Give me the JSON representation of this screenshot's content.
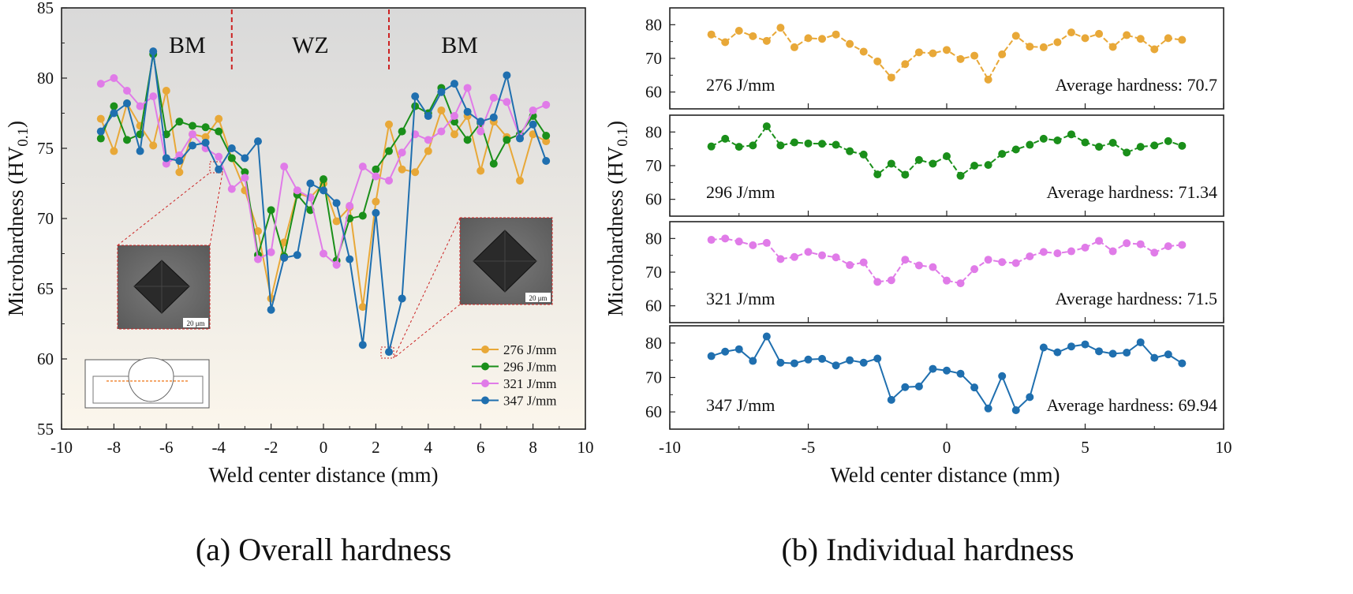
{
  "chart_data": [
    {
      "type": "line",
      "caption": "(a) Overall hardness",
      "xlabel": "Weld center distance (mm)",
      "ylabel_main": "Microhardness (HV",
      "ylabel_sub": "0.1",
      "ylabel_close": ")",
      "xlim": [
        -10,
        10
      ],
      "ylim": [
        55,
        85
      ],
      "xticks": [
        -10,
        -8,
        -6,
        -4,
        -2,
        0,
        2,
        4,
        6,
        8,
        10
      ],
      "yticks": [
        55,
        60,
        65,
        70,
        75,
        80,
        85
      ],
      "regions": [
        {
          "label": "BM",
          "x": -5.2
        },
        {
          "label": "WZ",
          "x": -0.5
        },
        {
          "label": "BM",
          "x": 5.2
        }
      ],
      "region_boundaries": [
        -3.5,
        2.5
      ],
      "micrograph_scale": "20 μm",
      "legend_position": "bottom-right",
      "x": [
        -8.5,
        -8,
        -7.5,
        -7,
        -6.5,
        -6,
        -5.5,
        -5,
        -4.5,
        -4,
        -3.5,
        -3,
        -2.5,
        -2,
        -1.5,
        -1,
        -0.5,
        0,
        0.5,
        1,
        1.5,
        2,
        2.5,
        3,
        3.5,
        4,
        4.5,
        5,
        5.5,
        6,
        6.5,
        7,
        7.5,
        8,
        8.5
      ],
      "series": [
        {
          "name": "276 J/mm",
          "color": "#E8A838",
          "values": [
            77.1,
            74.8,
            78.2,
            76.6,
            75.2,
            79.1,
            73.3,
            76.0,
            75.8,
            77.1,
            74.3,
            72.0,
            69.1,
            64.3,
            68.3,
            71.8,
            71.5,
            72.5,
            69.8,
            70.8,
            63.7,
            71.2,
            76.7,
            73.5,
            73.3,
            74.8,
            77.7,
            76.0,
            77.3,
            73.4,
            76.9,
            75.8,
            72.7,
            76.0,
            75.5
          ]
        },
        {
          "name": "296 J/mm",
          "color": "#1A8F1A",
          "values": [
            75.7,
            78.0,
            75.6,
            76.0,
            81.7,
            76.0,
            76.9,
            76.6,
            76.5,
            76.2,
            74.3,
            73.3,
            67.4,
            70.6,
            67.3,
            71.7,
            70.6,
            72.8,
            67.0,
            70.0,
            70.2,
            73.5,
            74.8,
            76.2,
            78.0,
            77.5,
            79.3,
            76.9,
            75.6,
            76.8,
            73.9,
            75.6,
            76.0,
            77.3,
            75.9
          ]
        },
        {
          "name": "321 J/mm",
          "color": "#E07BE8",
          "values": [
            79.6,
            80.0,
            79.1,
            78.0,
            78.7,
            73.9,
            74.5,
            76.0,
            75.0,
            74.4,
            72.1,
            72.9,
            67.1,
            67.6,
            73.7,
            72.0,
            71.5,
            67.5,
            66.7,
            70.9,
            73.7,
            73.0,
            72.7,
            74.7,
            76.0,
            75.6,
            76.2,
            77.3,
            79.3,
            76.2,
            78.6,
            78.3,
            75.8,
            77.7,
            78.1
          ]
        },
        {
          "name": "347 J/mm",
          "color": "#1F6FAF",
          "values": [
            76.2,
            77.5,
            78.2,
            74.8,
            81.9,
            74.3,
            74.1,
            75.2,
            75.4,
            73.5,
            75.0,
            74.3,
            75.5,
            63.5,
            67.2,
            67.4,
            72.5,
            72.0,
            71.1,
            67.1,
            61.0,
            70.4,
            60.5,
            64.3,
            78.7,
            77.3,
            79.0,
            79.6,
            77.6,
            76.9,
            77.2,
            80.2,
            75.7,
            76.7,
            74.1
          ]
        }
      ]
    },
    {
      "type": "line",
      "caption": "(b) Individual hardness",
      "xlabel": "Weld center distance (mm)",
      "ylabel_main": "Microhardness (HV",
      "ylabel_sub": "0.1",
      "ylabel_close": ")",
      "xlim": [
        -10,
        10
      ],
      "ylim": [
        55,
        85
      ],
      "xticks": [
        -10,
        -5,
        0,
        5,
        10
      ],
      "yticks": [
        60,
        70,
        80
      ],
      "panels": [
        {
          "name": "276 J/mm",
          "average_label": "Average hardness: 70.7",
          "color": "#E8A838",
          "values": [
            77.1,
            74.8,
            78.2,
            76.6,
            75.2,
            79.1,
            73.3,
            76.0,
            75.8,
            77.1,
            74.3,
            72.0,
            69.1,
            64.3,
            68.3,
            71.8,
            71.5,
            72.5,
            69.8,
            70.8,
            63.7,
            71.2,
            76.7,
            73.5,
            73.3,
            74.8,
            77.7,
            76.0,
            77.3,
            73.4,
            76.9,
            75.8,
            72.7,
            76.0,
            75.5
          ]
        },
        {
          "name": "296 J/mm",
          "average_label": "Average hardness: 71.34",
          "color": "#1A8F1A",
          "values": [
            75.7,
            78.0,
            75.6,
            76.0,
            81.7,
            76.0,
            76.9,
            76.6,
            76.5,
            76.2,
            74.3,
            73.3,
            67.4,
            70.6,
            67.3,
            71.7,
            70.6,
            72.8,
            67.0,
            70.0,
            70.2,
            73.5,
            74.8,
            76.2,
            78.0,
            77.5,
            79.3,
            76.9,
            75.6,
            76.8,
            73.9,
            75.6,
            76.0,
            77.3,
            75.9
          ]
        },
        {
          "name": "321 J/mm",
          "average_label": "Average hardness: 71.5",
          "color": "#E07BE8",
          "values": [
            79.6,
            80.0,
            79.1,
            78.0,
            78.7,
            73.9,
            74.5,
            76.0,
            75.0,
            74.4,
            72.1,
            72.9,
            67.1,
            67.6,
            73.7,
            72.0,
            71.5,
            67.5,
            66.7,
            70.9,
            73.7,
            73.0,
            72.7,
            74.7,
            76.0,
            75.6,
            76.2,
            77.3,
            79.3,
            76.2,
            78.6,
            78.3,
            75.8,
            77.7,
            78.1
          ]
        },
        {
          "name": "347 J/mm",
          "average_label": "Average hardness: 69.94",
          "color": "#1F6FAF",
          "values": [
            76.2,
            77.5,
            78.2,
            74.8,
            81.9,
            74.3,
            74.1,
            75.2,
            75.4,
            73.5,
            75.0,
            74.3,
            75.5,
            63.5,
            67.2,
            67.4,
            72.5,
            72.0,
            71.1,
            67.1,
            61.0,
            70.4,
            60.5,
            64.3,
            78.7,
            77.3,
            79.0,
            79.6,
            77.6,
            76.9,
            77.2,
            80.2,
            75.7,
            76.7,
            74.1
          ]
        }
      ]
    }
  ]
}
